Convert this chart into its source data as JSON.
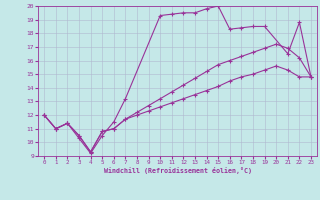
{
  "xlabel": "Windchill (Refroidissement éolien,°C)",
  "xlim": [
    -0.5,
    23.5
  ],
  "ylim": [
    9,
    20
  ],
  "xticks": [
    0,
    1,
    2,
    3,
    4,
    5,
    6,
    7,
    8,
    9,
    10,
    11,
    12,
    13,
    14,
    15,
    16,
    17,
    18,
    19,
    20,
    21,
    22,
    23
  ],
  "yticks": [
    9,
    10,
    11,
    12,
    13,
    14,
    15,
    16,
    17,
    18,
    19,
    20
  ],
  "background_color": "#c5e8e8",
  "line_color": "#993399",
  "grid_color": "#b0b8d0",
  "line1_x": [
    0,
    1,
    2,
    3,
    4,
    5,
    6,
    7,
    10,
    11,
    12,
    13,
    14,
    15,
    16,
    17,
    18,
    19,
    21,
    22,
    23
  ],
  "line1_y": [
    12.0,
    11.0,
    11.4,
    10.3,
    9.2,
    10.5,
    11.5,
    13.2,
    19.3,
    19.4,
    19.5,
    19.5,
    19.8,
    20.0,
    18.3,
    18.4,
    18.5,
    18.5,
    16.5,
    18.8,
    14.8
  ],
  "line2_x": [
    0,
    1,
    2,
    3,
    4,
    5,
    6,
    7,
    8,
    9,
    10,
    11,
    12,
    13,
    14,
    15,
    16,
    17,
    18,
    19,
    20,
    21,
    22,
    23
  ],
  "line2_y": [
    12.0,
    11.0,
    11.4,
    10.5,
    9.3,
    10.8,
    11.0,
    11.7,
    12.2,
    12.7,
    13.2,
    13.7,
    14.2,
    14.7,
    15.2,
    15.7,
    16.0,
    16.3,
    16.6,
    16.9,
    17.2,
    16.9,
    16.2,
    14.8
  ],
  "line3_x": [
    0,
    1,
    2,
    3,
    4,
    5,
    6,
    7,
    8,
    9,
    10,
    11,
    12,
    13,
    14,
    15,
    16,
    17,
    18,
    19,
    20,
    21,
    22,
    23
  ],
  "line3_y": [
    12.0,
    11.0,
    11.4,
    10.5,
    9.3,
    10.8,
    11.0,
    11.7,
    12.0,
    12.3,
    12.6,
    12.9,
    13.2,
    13.5,
    13.8,
    14.1,
    14.5,
    14.8,
    15.0,
    15.3,
    15.6,
    15.3,
    14.8,
    14.8
  ],
  "marker": "+"
}
